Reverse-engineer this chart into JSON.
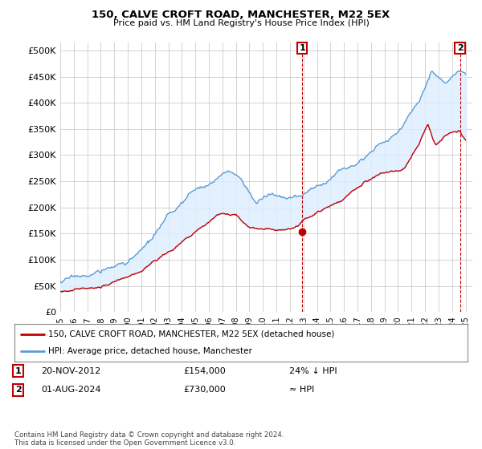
{
  "title": "150, CALVE CROFT ROAD, MANCHESTER, M22 5EX",
  "subtitle": "Price paid vs. HM Land Registry's House Price Index (HPI)",
  "ytick_values": [
    0,
    50000,
    100000,
    150000,
    200000,
    250000,
    300000,
    350000,
    400000,
    450000,
    500000
  ],
  "ylim": [
    0,
    515000
  ],
  "xlim_start": 1995.0,
  "xlim_end": 2025.5,
  "hpi_color": "#5b9bd5",
  "price_color": "#c00000",
  "shade_color": "#ddeeff",
  "background_color": "#ffffff",
  "grid_color": "#cccccc",
  "ann1_x": 2012.9,
  "ann1_y": 154000,
  "ann2_x": 2024.58,
  "legend_line1": "150, CALVE CROFT ROAD, MANCHESTER, M22 5EX (detached house)",
  "legend_line2": "HPI: Average price, detached house, Manchester",
  "note1_label": "1",
  "note1_date": "20-NOV-2012",
  "note1_price": "£154,000",
  "note1_hpi": "24% ↓ HPI",
  "note2_label": "2",
  "note2_date": "01-AUG-2024",
  "note2_price": "£730,000",
  "note2_hpi": "≈ HPI",
  "footer": "Contains HM Land Registry data © Crown copyright and database right 2024.\nThis data is licensed under the Open Government Licence v3.0."
}
